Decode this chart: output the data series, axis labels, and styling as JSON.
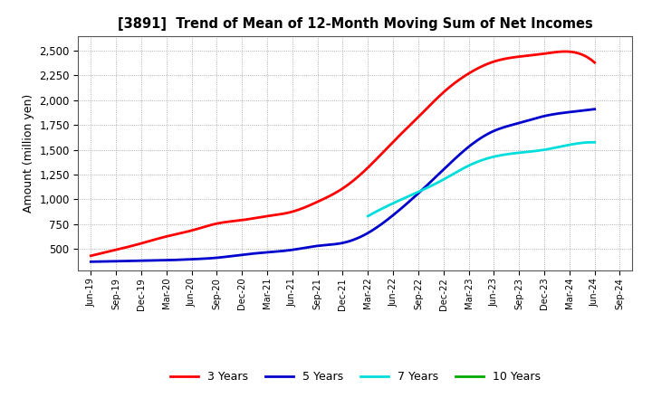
{
  "title": "[3891]  Trend of Mean of 12-Month Moving Sum of Net Incomes",
  "ylabel": "Amount (million yen)",
  "background_color": "#ffffff",
  "grid_color": "#aaaaaa",
  "ylim": [
    280,
    2650
  ],
  "yticks": [
    500,
    750,
    1000,
    1250,
    1500,
    1750,
    2000,
    2250,
    2500
  ],
  "x_labels": [
    "Jun-19",
    "Sep-19",
    "Dec-19",
    "Mar-20",
    "Jun-20",
    "Sep-20",
    "Dec-20",
    "Mar-21",
    "Jun-21",
    "Sep-21",
    "Dec-21",
    "Mar-22",
    "Jun-22",
    "Sep-22",
    "Dec-22",
    "Mar-23",
    "Jun-23",
    "Sep-23",
    "Dec-23",
    "Mar-24",
    "Jun-24",
    "Sep-24"
  ],
  "series": {
    "3 Years": {
      "color": "#ff0000",
      "data_x": [
        0,
        1,
        2,
        3,
        4,
        5,
        6,
        7,
        8,
        9,
        10,
        11,
        12,
        13,
        14,
        15,
        16,
        17,
        18,
        19,
        20
      ],
      "data_y": [
        430,
        490,
        555,
        625,
        685,
        755,
        790,
        830,
        875,
        975,
        1110,
        1320,
        1580,
        1830,
        2080,
        2270,
        2390,
        2440,
        2470,
        2490,
        2380
      ]
    },
    "5 Years": {
      "color": "#0000cc",
      "data_x": [
        0,
        1,
        2,
        3,
        4,
        5,
        6,
        7,
        8,
        9,
        10,
        11,
        12,
        13,
        14,
        15,
        16,
        17,
        18,
        19,
        20
      ],
      "data_y": [
        370,
        375,
        380,
        385,
        395,
        410,
        440,
        465,
        490,
        530,
        560,
        660,
        840,
        1060,
        1300,
        1530,
        1690,
        1770,
        1840,
        1880,
        1910
      ]
    },
    "7 Years": {
      "color": "#00dddd",
      "data_x": [
        11,
        12,
        13,
        14,
        15,
        16,
        17,
        18,
        19,
        20
      ],
      "data_y": [
        830,
        960,
        1075,
        1200,
        1340,
        1430,
        1470,
        1500,
        1550,
        1575
      ]
    },
    "10 Years": {
      "color": "#00aa00",
      "data_x": [],
      "data_y": []
    }
  },
  "legend_entries": [
    "3 Years",
    "5 Years",
    "7 Years",
    "10 Years"
  ],
  "legend_colors": [
    "#ff0000",
    "#0000cc",
    "#00dddd",
    "#00aa00"
  ]
}
